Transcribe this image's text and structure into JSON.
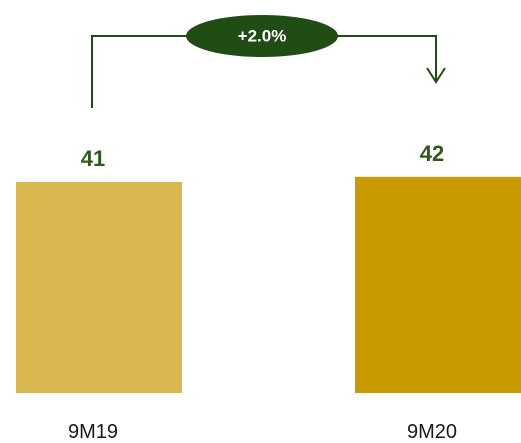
{
  "chart_data": {
    "type": "bar",
    "categories": [
      "9M19",
      "9M20"
    ],
    "values": [
      41,
      42
    ],
    "data_labels": [
      "41",
      "42"
    ],
    "colors": [
      "#D8B84E",
      "#C99A00"
    ],
    "label_color": "#2E5A1C",
    "change_annotation": {
      "text": "+2.0%",
      "color": "#1F4D14"
    },
    "title": "",
    "xlabel": "",
    "ylabel": "",
    "grid": false,
    "ylim": [
      0,
      42
    ]
  }
}
